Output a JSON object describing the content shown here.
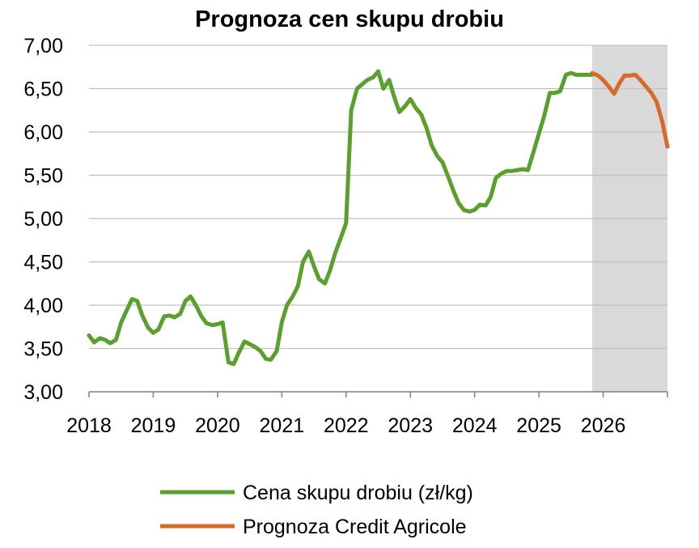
{
  "chart_data": {
    "type": "line",
    "title": "Prognoza cen skupu drobiu",
    "xlabel": "",
    "ylabel": "",
    "ylim": [
      3.0,
      7.0
    ],
    "xlim": [
      2018.0,
      2027.0
    ],
    "y_ticks": [
      "3,00",
      "3,50",
      "4,00",
      "4,50",
      "5,00",
      "5,50",
      "6,00",
      "6,50",
      "7,00"
    ],
    "x_ticks": [
      "2018",
      "2019",
      "2020",
      "2021",
      "2022",
      "2023",
      "2024",
      "2025",
      "2026"
    ],
    "grid": true,
    "legend_position": "bottom",
    "shaded_region": {
      "x_start": 2025.83,
      "x_end": 2027.0,
      "color": "#d9d9d9"
    },
    "series": [
      {
        "name": "Cena skupu drobiu (zł/kg)",
        "color": "#5aa02c",
        "x": [
          2018.0,
          2018.08,
          2018.17,
          2018.25,
          2018.33,
          2018.42,
          2018.5,
          2018.58,
          2018.67,
          2018.75,
          2018.83,
          2018.92,
          2019.0,
          2019.08,
          2019.17,
          2019.25,
          2019.33,
          2019.42,
          2019.5,
          2019.58,
          2019.67,
          2019.75,
          2019.83,
          2019.92,
          2020.0,
          2020.08,
          2020.17,
          2020.25,
          2020.33,
          2020.42,
          2020.5,
          2020.58,
          2020.67,
          2020.75,
          2020.83,
          2020.92,
          2021.0,
          2021.08,
          2021.17,
          2021.25,
          2021.33,
          2021.42,
          2021.5,
          2021.58,
          2021.67,
          2021.75,
          2021.83,
          2021.92,
          2022.0,
          2022.08,
          2022.17,
          2022.25,
          2022.33,
          2022.42,
          2022.5,
          2022.58,
          2022.67,
          2022.75,
          2022.83,
          2022.92,
          2023.0,
          2023.08,
          2023.17,
          2023.25,
          2023.33,
          2023.42,
          2023.5,
          2023.58,
          2023.67,
          2023.75,
          2023.83,
          2023.92,
          2024.0,
          2024.08,
          2024.17,
          2024.25,
          2024.33,
          2024.42,
          2024.5,
          2024.58,
          2024.67,
          2024.75,
          2024.83,
          2024.92,
          2025.0,
          2025.08,
          2025.17,
          2025.25,
          2025.33,
          2025.42,
          2025.5,
          2025.58,
          2025.67,
          2025.75,
          2025.83
        ],
        "y": [
          3.65,
          3.57,
          3.62,
          3.6,
          3.56,
          3.6,
          3.8,
          3.93,
          4.07,
          4.05,
          3.88,
          3.74,
          3.68,
          3.72,
          3.87,
          3.88,
          3.86,
          3.9,
          4.05,
          4.1,
          3.99,
          3.87,
          3.79,
          3.77,
          3.78,
          3.8,
          3.34,
          3.32,
          3.45,
          3.58,
          3.55,
          3.52,
          3.47,
          3.38,
          3.37,
          3.47,
          3.8,
          4.0,
          4.1,
          4.22,
          4.5,
          4.62,
          4.45,
          4.3,
          4.25,
          4.4,
          4.6,
          4.78,
          4.95,
          6.25,
          6.5,
          6.55,
          6.6,
          6.63,
          6.7,
          6.5,
          6.6,
          6.4,
          6.23,
          6.3,
          6.38,
          6.28,
          6.2,
          6.05,
          5.85,
          5.72,
          5.65,
          5.5,
          5.32,
          5.18,
          5.1,
          5.08,
          5.1,
          5.16,
          5.15,
          5.25,
          5.47,
          5.52,
          5.55,
          5.55,
          5.56,
          5.57,
          5.56,
          5.78,
          5.98,
          6.18,
          6.45,
          6.45,
          6.47,
          6.66,
          6.68,
          6.66,
          6.66,
          6.66,
          6.66
        ]
      },
      {
        "name": "Prognoza Credit Agricole",
        "color": "#d66a2a",
        "x": [
          2025.83,
          2025.92,
          2026.0,
          2026.08,
          2026.17,
          2026.25,
          2026.33,
          2026.42,
          2026.5,
          2026.58,
          2026.67,
          2026.75,
          2026.83,
          2026.92,
          2027.0
        ],
        "y": [
          6.68,
          6.65,
          6.6,
          6.53,
          6.44,
          6.56,
          6.65,
          6.65,
          6.66,
          6.6,
          6.52,
          6.45,
          6.35,
          6.12,
          5.83
        ]
      }
    ]
  }
}
